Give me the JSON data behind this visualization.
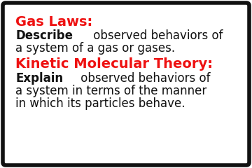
{
  "background_color": "#ffffff",
  "border_color": "#111111",
  "border_linewidth": 4,
  "red_color": "#ee1111",
  "black_color": "#111111",
  "section1_title": "Gas Laws:",
  "section1_bold": "Describe",
  "section1_rest_line1": " observed behaviors of",
  "section1_line2": "a system of a gas or gases.",
  "section2_title": "Kinetic Molecular Theory:",
  "section2_bold": "Explain",
  "section2_rest_line1": " observed behaviors of",
  "section2_line2": "a system in terms of the manner",
  "section2_line3": "in which its particles behave.",
  "title_fontsize": 14,
  "body_fontsize": 12
}
